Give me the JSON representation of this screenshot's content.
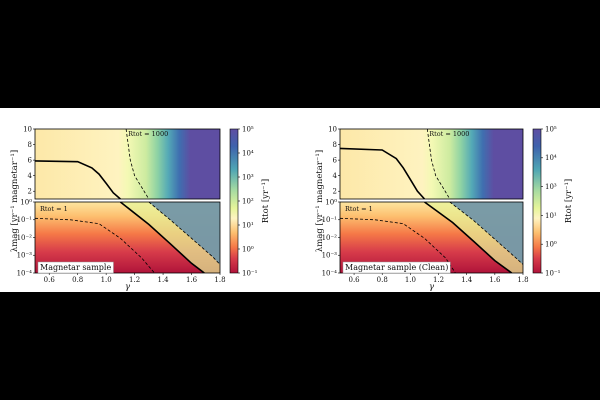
{
  "chart_data": [
    {
      "type": "heatmap",
      "panel_label": "Magnetar sample",
      "xlabel": "γ",
      "ylabel": "λmag [yr⁻¹ magnetar⁻¹]",
      "colorbar_label": "Rtot [yr⁻¹]",
      "xlim": [
        0.5,
        1.8
      ],
      "xticks": [
        "0.6",
        "0.8",
        "1.0",
        "1.2",
        "1.4",
        "1.6",
        "1.8"
      ],
      "upper_ylim": [
        1,
        10
      ],
      "upper_yticks": [
        "2",
        "4",
        "6",
        "8",
        "10"
      ],
      "lower_ylim_log": [
        -4,
        0
      ],
      "lower_yticks": [
        "10⁻⁴",
        "10⁻³",
        "10⁻²",
        "10⁻¹",
        "10⁰"
      ],
      "colorbar_ticks": [
        "10⁻¹",
        "10⁰",
        "10¹",
        "10²",
        "10³",
        "10⁴",
        "10⁵"
      ],
      "annotations": [
        "Rtot = 1000",
        "Rtot = 1"
      ],
      "solid_contour": {
        "upper": {
          "x": [
            0.5,
            0.8,
            0.9,
            0.95,
            1.0,
            1.05,
            1.1
          ],
          "y": [
            5.9,
            5.8,
            5.0,
            4.2,
            3.0,
            1.8,
            1.0
          ]
        },
        "lower": {
          "x": [
            1.1,
            1.3,
            1.45,
            1.6,
            1.69
          ],
          "y": [
            1,
            0.055,
            0.0045,
            0.00035,
            0.0001
          ]
        }
      },
      "dashed_1000": {
        "upper": {
          "x": [
            1.14,
            1.17,
            1.2,
            1.25,
            1.3
          ],
          "y": [
            10,
            6,
            4,
            2.5,
            1.0
          ]
        },
        "lower": {
          "x": [
            1.3,
            1.45,
            1.6,
            1.75,
            1.8
          ],
          "y": [
            1,
            0.1,
            0.009,
            0.0008,
            0.0003
          ]
        }
      },
      "dashed_1": {
        "x": [
          0.5,
          0.75,
          0.95,
          1.1,
          1.25,
          1.34
        ],
        "y": [
          0.12,
          0.1,
          0.06,
          0.009,
          0.0007,
          0.0001
        ]
      }
    },
    {
      "type": "heatmap",
      "panel_label": "Magnetar sample (Clean)",
      "xlabel": "γ",
      "ylabel": "λmag [yr⁻¹ magnetar⁻¹]",
      "colorbar_label": "Rtot [yr⁻¹]",
      "xlim": [
        0.5,
        1.8
      ],
      "xticks": [
        "0.6",
        "0.8",
        "1.0",
        "1.2",
        "1.4",
        "1.6",
        "1.8"
      ],
      "upper_ylim": [
        1,
        10
      ],
      "upper_yticks": [
        "2",
        "4",
        "6",
        "8",
        "10"
      ],
      "lower_ylim_log": [
        -4,
        0
      ],
      "lower_yticks": [
        "10⁻⁴",
        "10⁻³",
        "10⁻²",
        "10⁻¹",
        "10⁰"
      ],
      "colorbar_ticks": [
        "10⁻¹",
        "10⁰",
        "10¹",
        "10³",
        "10⁴",
        "10⁵"
      ],
      "annotations": [
        "Rtot = 1000",
        "Rtot = 1"
      ],
      "solid_contour": {
        "upper": {
          "x": [
            0.5,
            0.8,
            0.9,
            0.95,
            1.0,
            1.05,
            1.1
          ],
          "y": [
            7.5,
            7.3,
            6.2,
            5.0,
            3.5,
            2.0,
            1.0
          ]
        },
        "lower": {
          "x": [
            1.1,
            1.3,
            1.45,
            1.6,
            1.72
          ],
          "y": [
            1,
            0.07,
            0.006,
            0.0005,
            0.0001
          ]
        }
      },
      "dashed_1000": {
        "upper": {
          "x": [
            1.12,
            1.15,
            1.18,
            1.23,
            1.28
          ],
          "y": [
            10,
            6,
            4,
            2.5,
            1.0
          ]
        },
        "lower": {
          "x": [
            1.28,
            1.45,
            1.6,
            1.75,
            1.8
          ],
          "y": [
            1,
            0.09,
            0.008,
            0.0007,
            0.0003
          ]
        }
      },
      "dashed_1": {
        "x": [
          0.5,
          0.75,
          0.95,
          1.1,
          1.25,
          1.32
        ],
        "y": [
          0.12,
          0.1,
          0.06,
          0.009,
          0.0007,
          0.0001
        ]
      }
    }
  ],
  "colors": {
    "deep_red": "#b0133a",
    "red": "#d73c4a",
    "orange": "#f57847",
    "light_orange": "#fdbf6f",
    "cream": "#fef4c2",
    "light_green": "#e6f59a",
    "green": "#a3d9a2",
    "teal": "#4ea5b4",
    "blue": "#3f62ac",
    "purple": "#5e4ea2"
  }
}
